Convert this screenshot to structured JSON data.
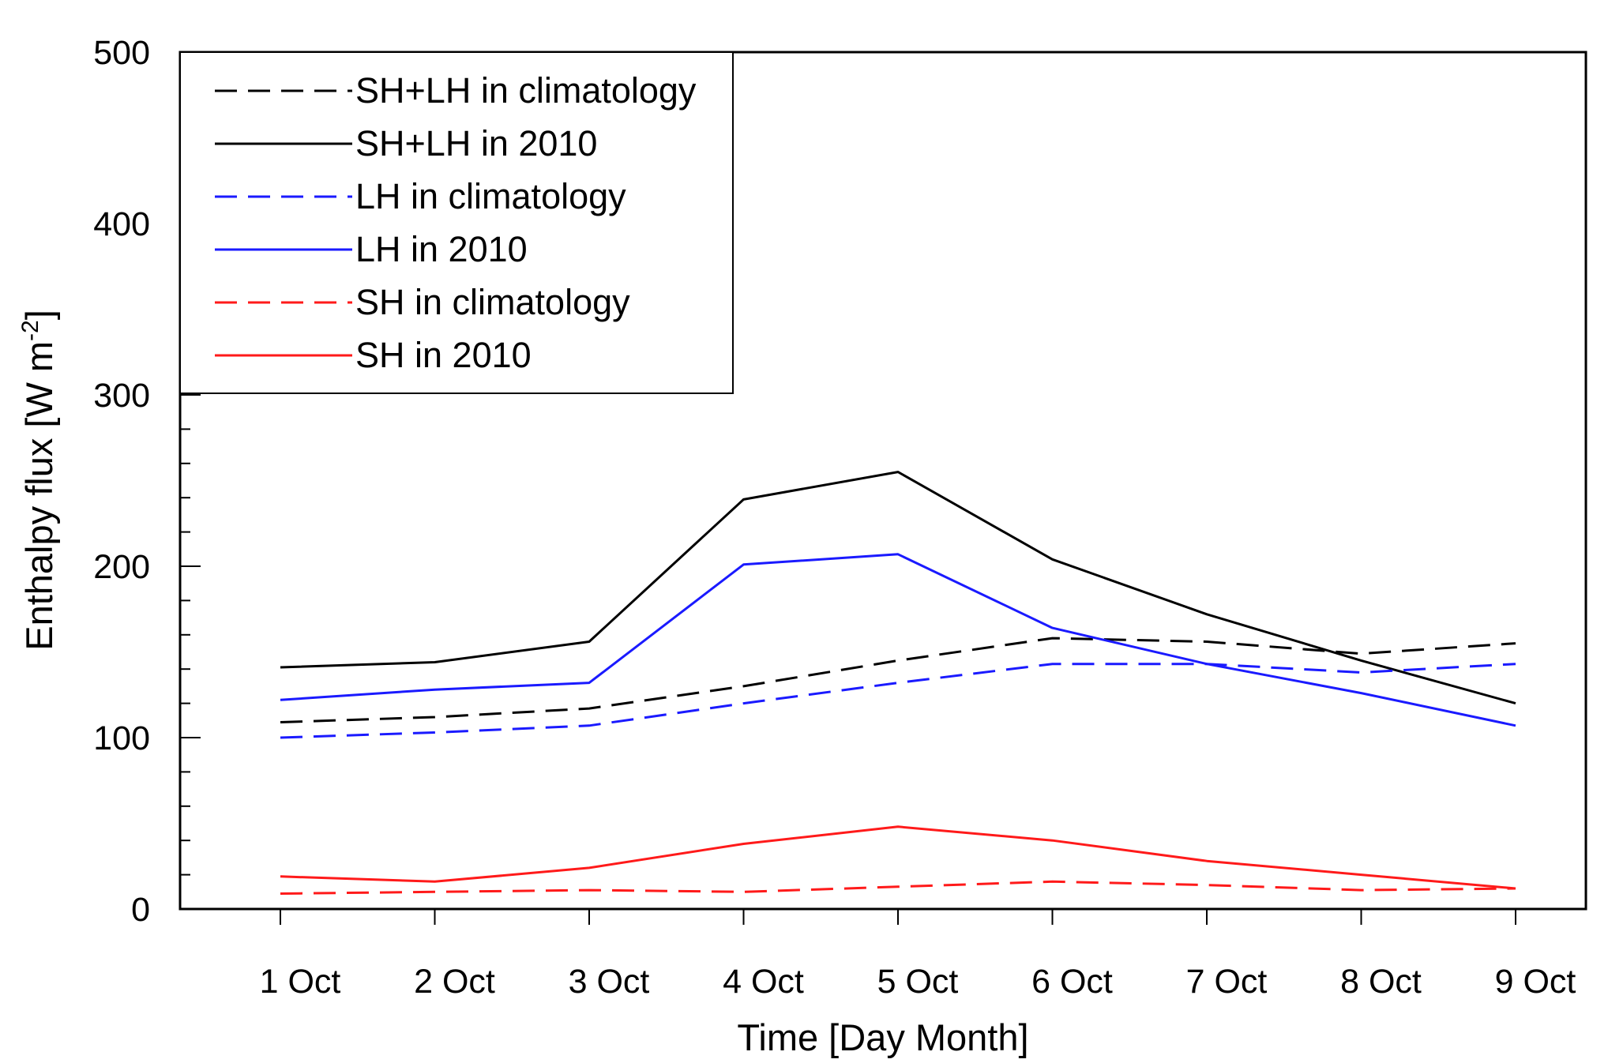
{
  "chart_data": {
    "type": "line",
    "title": "",
    "xlabel": "Time [Day Month]",
    "ylabel": "Enthalpy flux [W m",
    "ylabel_superscript": "-2",
    "ylabel_close": "]",
    "ylim": [
      0,
      500
    ],
    "yticks": [
      "0",
      "100",
      "200",
      "300",
      "400",
      "500"
    ],
    "categories": [
      "1 Oct",
      "2 Oct",
      "3 Oct",
      "4 Oct",
      "5 Oct",
      "6 Oct",
      "7 Oct",
      "8 Oct",
      "9 Oct"
    ],
    "legend_position": "top-left",
    "grid": false,
    "series": [
      {
        "name": "SH+LH in climatology",
        "color": "#000000",
        "dashed": true,
        "values": [
          109,
          112,
          117,
          130,
          145,
          158,
          156,
          149,
          155
        ]
      },
      {
        "name": "SH+LH in 2010",
        "color": "#000000",
        "dashed": false,
        "values": [
          141,
          144,
          156,
          239,
          255,
          204,
          172,
          145,
          120
        ]
      },
      {
        "name": "LH in climatology",
        "color": "#1a1aff",
        "dashed": true,
        "values": [
          100,
          103,
          107,
          120,
          132,
          143,
          143,
          138,
          143
        ]
      },
      {
        "name": "LH in 2010",
        "color": "#1a1aff",
        "dashed": false,
        "values": [
          122,
          128,
          132,
          201,
          207,
          164,
          143,
          126,
          107
        ]
      },
      {
        "name": "SH in climatology",
        "color": "#ff1a1a",
        "dashed": true,
        "values": [
          9,
          10,
          11,
          10,
          13,
          16,
          14,
          11,
          12
        ]
      },
      {
        "name": "SH in 2010",
        "color": "#ff1a1a",
        "dashed": false,
        "values": [
          19,
          16,
          24,
          38,
          48,
          40,
          28,
          20,
          12
        ]
      }
    ]
  }
}
